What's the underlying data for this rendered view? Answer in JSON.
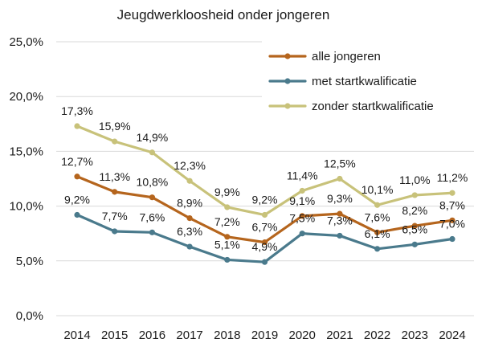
{
  "chart_data": {
    "type": "line",
    "title": "Jeugdwerkloosheid onder jongeren",
    "xlabel": "",
    "ylabel": "",
    "ylim": [
      0,
      25
    ],
    "yticks": [
      0,
      5,
      10,
      15,
      20,
      25
    ],
    "ytick_labels": [
      "0,0%",
      "5,0%",
      "10,0%",
      "15,0%",
      "20,0%",
      "25,0%"
    ],
    "grid": true,
    "legend_position": "top-right",
    "x": [
      "2014",
      "2015",
      "2016",
      "2017",
      "2018",
      "2019",
      "2020",
      "2021",
      "2022",
      "2023",
      "2024"
    ],
    "series": [
      {
        "name": "alle jongeren",
        "color": "#b5651d",
        "values": [
          12.7,
          11.3,
          10.8,
          8.9,
          7.2,
          6.7,
          9.1,
          9.3,
          7.6,
          8.2,
          8.7
        ],
        "labels": [
          "12,7%",
          "11,3%",
          "10,8%",
          "8,9%",
          "7,2%",
          "6,7%",
          "9,1%",
          "9,3%",
          "7,6%",
          "8,2%",
          "8,7%"
        ]
      },
      {
        "name": "met startkwalificatie",
        "color": "#4a7a8c",
        "values": [
          9.2,
          7.7,
          7.6,
          6.3,
          5.1,
          4.9,
          7.5,
          7.3,
          6.1,
          6.5,
          7.0
        ],
        "labels": [
          "9,2%",
          "7,7%",
          "7,6%",
          "6,3%",
          "5,1%",
          "4,9%",
          "7,5%",
          "7,3%",
          "6,1%",
          "6,5%",
          "7,0%"
        ]
      },
      {
        "name": "zonder startkwalificatie",
        "color": "#c8c27a",
        "values": [
          17.3,
          15.9,
          14.9,
          12.3,
          9.9,
          9.2,
          11.4,
          12.5,
          10.1,
          11.0,
          11.2
        ],
        "labels": [
          "17,3%",
          "15,9%",
          "14,9%",
          "12,3%",
          "9,9%",
          "9,2%",
          "11,4%",
          "12,5%",
          "10,1%",
          "11,0%",
          "11,2%"
        ]
      }
    ]
  }
}
